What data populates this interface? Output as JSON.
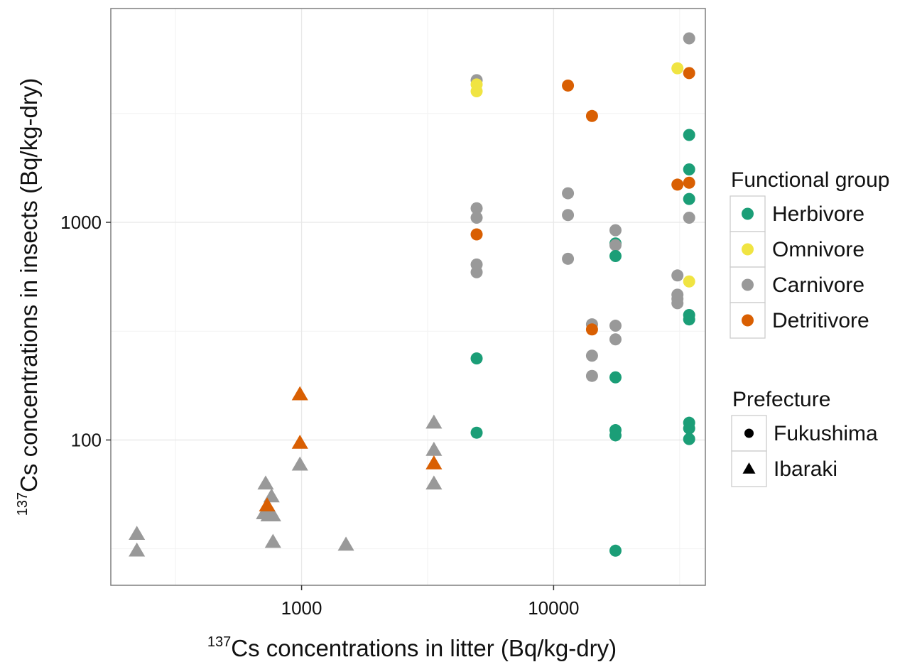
{
  "chart_data": {
    "type": "scatter",
    "x_scale": "log10",
    "y_scale": "log10",
    "xlim": [
      175,
      40000
    ],
    "ylim": [
      21.5,
      9600
    ],
    "x_ticks": [
      1000,
      10000
    ],
    "x_tick_labels": [
      "1000",
      "10000"
    ],
    "y_ticks": [
      100,
      1000
    ],
    "y_tick_labels": [
      "100",
      "1000"
    ],
    "grid": true,
    "xlabel": {
      "sup": "137",
      "text": "Cs concentrations in litter (Bq/kg-dry)"
    },
    "ylabel": {
      "sup": "137",
      "text": "Cs concentrations in insects (Bq/kg-dry)"
    },
    "legend_placement": "right",
    "legends": {
      "color": {
        "title": "Functional group",
        "items": [
          {
            "key": "Herbivore",
            "label": "Herbivore",
            "color": "#1b9e77"
          },
          {
            "key": "Omnivore",
            "label": "Omnivore",
            "color": "#f0e442"
          },
          {
            "key": "Carnivore",
            "label": "Carnivore",
            "color": "#999999"
          },
          {
            "key": "Detritivore",
            "label": "Detritivore",
            "color": "#d95f02"
          }
        ]
      },
      "shape": {
        "title": "Prefecture",
        "items": [
          {
            "key": "Fukushima",
            "label": "Fukushima",
            "shape": "circle"
          },
          {
            "key": "Ibaraki",
            "label": "Ibaraki",
            "shape": "triangle"
          }
        ]
      }
    },
    "points": [
      {
        "x": 222,
        "y": 37,
        "group": "Carnivore",
        "prefecture": "Ibaraki"
      },
      {
        "x": 222,
        "y": 31,
        "group": "Carnivore",
        "prefecture": "Ibaraki"
      },
      {
        "x": 720,
        "y": 63,
        "group": "Carnivore",
        "prefecture": "Ibaraki"
      },
      {
        "x": 760,
        "y": 55,
        "group": "Carnivore",
        "prefecture": "Ibaraki"
      },
      {
        "x": 710,
        "y": 46,
        "group": "Carnivore",
        "prefecture": "Ibaraki"
      },
      {
        "x": 740,
        "y": 45,
        "group": "Carnivore",
        "prefecture": "Ibaraki"
      },
      {
        "x": 770,
        "y": 45,
        "group": "Carnivore",
        "prefecture": "Ibaraki"
      },
      {
        "x": 770,
        "y": 34,
        "group": "Carnivore",
        "prefecture": "Ibaraki"
      },
      {
        "x": 730,
        "y": 50,
        "group": "Detritivore",
        "prefecture": "Ibaraki"
      },
      {
        "x": 985,
        "y": 77,
        "group": "Carnivore",
        "prefecture": "Ibaraki"
      },
      {
        "x": 985,
        "y": 97,
        "group": "Detritivore",
        "prefecture": "Ibaraki"
      },
      {
        "x": 985,
        "y": 162,
        "group": "Detritivore",
        "prefecture": "Ibaraki"
      },
      {
        "x": 1500,
        "y": 33,
        "group": "Carnivore",
        "prefecture": "Ibaraki"
      },
      {
        "x": 3350,
        "y": 120,
        "group": "Carnivore",
        "prefecture": "Ibaraki"
      },
      {
        "x": 3350,
        "y": 90,
        "group": "Carnivore",
        "prefecture": "Ibaraki"
      },
      {
        "x": 3350,
        "y": 78,
        "group": "Detritivore",
        "prefecture": "Ibaraki"
      },
      {
        "x": 3350,
        "y": 63,
        "group": "Carnivore",
        "prefecture": "Ibaraki"
      },
      {
        "x": 4950,
        "y": 4500,
        "group": "Carnivore",
        "prefecture": "Fukushima"
      },
      {
        "x": 4950,
        "y": 4300,
        "group": "Omnivore",
        "prefecture": "Fukushima"
      },
      {
        "x": 4950,
        "y": 4000,
        "group": "Omnivore",
        "prefecture": "Fukushima"
      },
      {
        "x": 4950,
        "y": 1160,
        "group": "Carnivore",
        "prefecture": "Fukushima"
      },
      {
        "x": 4950,
        "y": 1050,
        "group": "Carnivore",
        "prefecture": "Fukushima"
      },
      {
        "x": 4950,
        "y": 880,
        "group": "Detritivore",
        "prefecture": "Fukushima"
      },
      {
        "x": 4950,
        "y": 640,
        "group": "Carnivore",
        "prefecture": "Fukushima"
      },
      {
        "x": 4950,
        "y": 590,
        "group": "Carnivore",
        "prefecture": "Fukushima"
      },
      {
        "x": 4950,
        "y": 237,
        "group": "Herbivore",
        "prefecture": "Fukushima"
      },
      {
        "x": 4950,
        "y": 108,
        "group": "Herbivore",
        "prefecture": "Fukushima"
      },
      {
        "x": 11400,
        "y": 4250,
        "group": "Detritivore",
        "prefecture": "Fukushima"
      },
      {
        "x": 11400,
        "y": 1360,
        "group": "Carnivore",
        "prefecture": "Fukushima"
      },
      {
        "x": 11400,
        "y": 1080,
        "group": "Carnivore",
        "prefecture": "Fukushima"
      },
      {
        "x": 11400,
        "y": 680,
        "group": "Carnivore",
        "prefecture": "Fukushima"
      },
      {
        "x": 14200,
        "y": 3080,
        "group": "Detritivore",
        "prefecture": "Fukushima"
      },
      {
        "x": 14200,
        "y": 340,
        "group": "Carnivore",
        "prefecture": "Fukushima"
      },
      {
        "x": 14200,
        "y": 322,
        "group": "Detritivore",
        "prefecture": "Fukushima"
      },
      {
        "x": 14200,
        "y": 244,
        "group": "Carnivore",
        "prefecture": "Fukushima"
      },
      {
        "x": 14200,
        "y": 197,
        "group": "Carnivore",
        "prefecture": "Fukushima"
      },
      {
        "x": 17600,
        "y": 920,
        "group": "Carnivore",
        "prefecture": "Fukushima"
      },
      {
        "x": 17600,
        "y": 800,
        "group": "Herbivore",
        "prefecture": "Fukushima"
      },
      {
        "x": 17600,
        "y": 785,
        "group": "Carnivore",
        "prefecture": "Fukushima"
      },
      {
        "x": 17600,
        "y": 700,
        "group": "Herbivore",
        "prefecture": "Fukushima"
      },
      {
        "x": 17600,
        "y": 335,
        "group": "Carnivore",
        "prefecture": "Fukushima"
      },
      {
        "x": 17600,
        "y": 290,
        "group": "Carnivore",
        "prefecture": "Fukushima"
      },
      {
        "x": 17600,
        "y": 194,
        "group": "Herbivore",
        "prefecture": "Fukushima"
      },
      {
        "x": 17600,
        "y": 111,
        "group": "Herbivore",
        "prefecture": "Fukushima"
      },
      {
        "x": 17600,
        "y": 105,
        "group": "Herbivore",
        "prefecture": "Fukushima"
      },
      {
        "x": 17600,
        "y": 31,
        "group": "Herbivore",
        "prefecture": "Fukushima"
      },
      {
        "x": 31000,
        "y": 5100,
        "group": "Omnivore",
        "prefecture": "Fukushima"
      },
      {
        "x": 31000,
        "y": 1490,
        "group": "Detritivore",
        "prefecture": "Fukushima"
      },
      {
        "x": 31000,
        "y": 570,
        "group": "Carnivore",
        "prefecture": "Fukushima"
      },
      {
        "x": 31000,
        "y": 465,
        "group": "Carnivore",
        "prefecture": "Fukushima"
      },
      {
        "x": 31000,
        "y": 445,
        "group": "Carnivore",
        "prefecture": "Fukushima"
      },
      {
        "x": 31000,
        "y": 425,
        "group": "Carnivore",
        "prefecture": "Fukushima"
      },
      {
        "x": 34500,
        "y": 7000,
        "group": "Carnivore",
        "prefecture": "Fukushima"
      },
      {
        "x": 34500,
        "y": 4850,
        "group": "Detritivore",
        "prefecture": "Fukushima"
      },
      {
        "x": 34500,
        "y": 2520,
        "group": "Herbivore",
        "prefecture": "Fukushima"
      },
      {
        "x": 34500,
        "y": 1750,
        "group": "Herbivore",
        "prefecture": "Fukushima"
      },
      {
        "x": 34500,
        "y": 1520,
        "group": "Detritivore",
        "prefecture": "Fukushima"
      },
      {
        "x": 34500,
        "y": 1280,
        "group": "Herbivore",
        "prefecture": "Fukushima"
      },
      {
        "x": 34500,
        "y": 1050,
        "group": "Carnivore",
        "prefecture": "Fukushima"
      },
      {
        "x": 34500,
        "y": 535,
        "group": "Omnivore",
        "prefecture": "Fukushima"
      },
      {
        "x": 34500,
        "y": 375,
        "group": "Herbivore",
        "prefecture": "Fukushima"
      },
      {
        "x": 34500,
        "y": 358,
        "group": "Herbivore",
        "prefecture": "Fukushima"
      },
      {
        "x": 34500,
        "y": 120,
        "group": "Herbivore",
        "prefecture": "Fukushima"
      },
      {
        "x": 34500,
        "y": 113,
        "group": "Herbivore",
        "prefecture": "Fukushima"
      },
      {
        "x": 34500,
        "y": 101,
        "group": "Herbivore",
        "prefecture": "Fukushima"
      }
    ]
  }
}
